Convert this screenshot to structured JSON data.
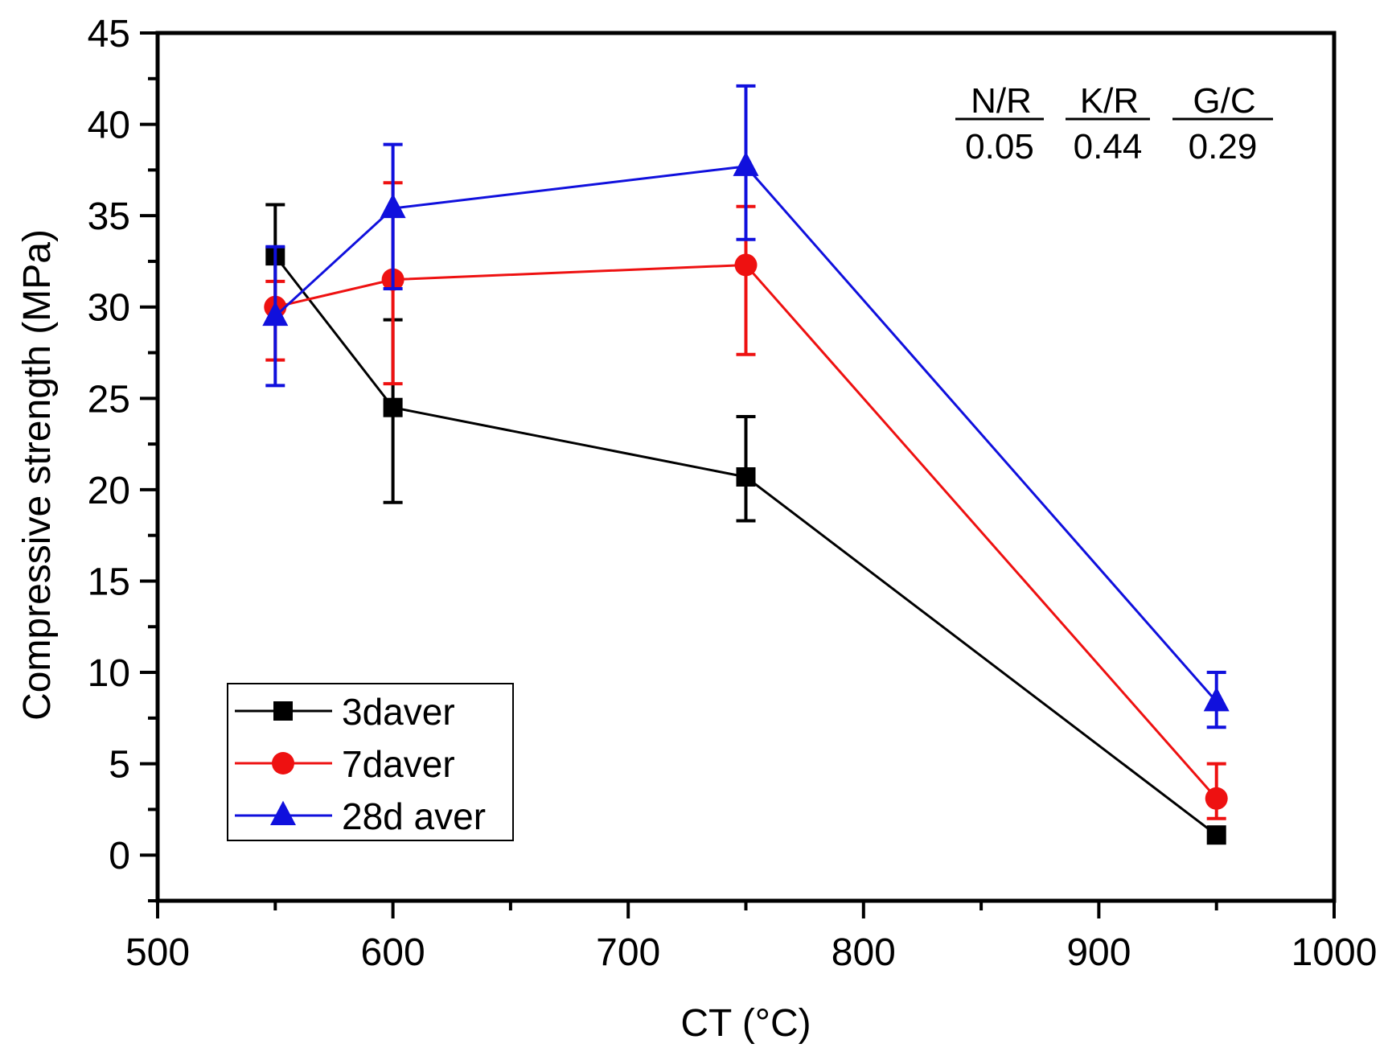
{
  "chart_data": {
    "type": "line",
    "title": "",
    "xlabel": "CT (°C)",
    "ylabel": "Compressive strength (MPa)",
    "xlim": [
      500,
      1000
    ],
    "ylim": [
      -2.5,
      45
    ],
    "xticks": [
      500,
      600,
      700,
      800,
      900,
      1000
    ],
    "xtick_labels": [
      "500",
      "600",
      "700",
      "800",
      "900",
      "1000"
    ],
    "x_minor_ticks": [
      550,
      650,
      750,
      850,
      950
    ],
    "yticks": [
      0,
      5,
      10,
      15,
      20,
      25,
      30,
      35,
      40,
      45
    ],
    "ytick_labels": [
      "0",
      "5",
      "10",
      "15",
      "20",
      "25",
      "30",
      "35",
      "40",
      "45"
    ],
    "y_minor_ticks": [
      -2.5,
      2.5,
      7.5,
      12.5,
      17.5,
      22.5,
      27.5,
      32.5,
      37.5,
      42.5
    ],
    "grid": false,
    "legend_position": "bottom-left",
    "x": [
      550,
      600,
      750,
      950
    ],
    "series": [
      {
        "name": "3daver",
        "marker": "square",
        "color": "#000000",
        "values": [
          32.8,
          24.5,
          20.7,
          1.1
        ],
        "err_lower": [
          30.0,
          19.3,
          18.3,
          1.1
        ],
        "err_upper": [
          35.6,
          29.3,
          24.0,
          1.1
        ]
      },
      {
        "name": "7daver",
        "marker": "circle",
        "color": "#ee1111",
        "values": [
          30.0,
          31.5,
          32.3,
          3.1
        ],
        "err_lower": [
          27.1,
          25.8,
          27.4,
          2.0
        ],
        "err_upper": [
          31.4,
          36.8,
          35.5,
          5.0
        ]
      },
      {
        "name": "28d aver",
        "marker": "triangle",
        "color": "#1010dd",
        "values": [
          29.5,
          35.4,
          37.7,
          8.4
        ],
        "err_lower": [
          25.7,
          31.0,
          33.7,
          7.0
        ],
        "err_upper": [
          33.3,
          38.9,
          42.1,
          10.0
        ]
      }
    ],
    "annotations": [
      {
        "label": "N/R",
        "value": "0.05"
      },
      {
        "label": "K/R",
        "value": "0.44"
      },
      {
        "label": "G/C",
        "value": "0.29"
      }
    ]
  }
}
